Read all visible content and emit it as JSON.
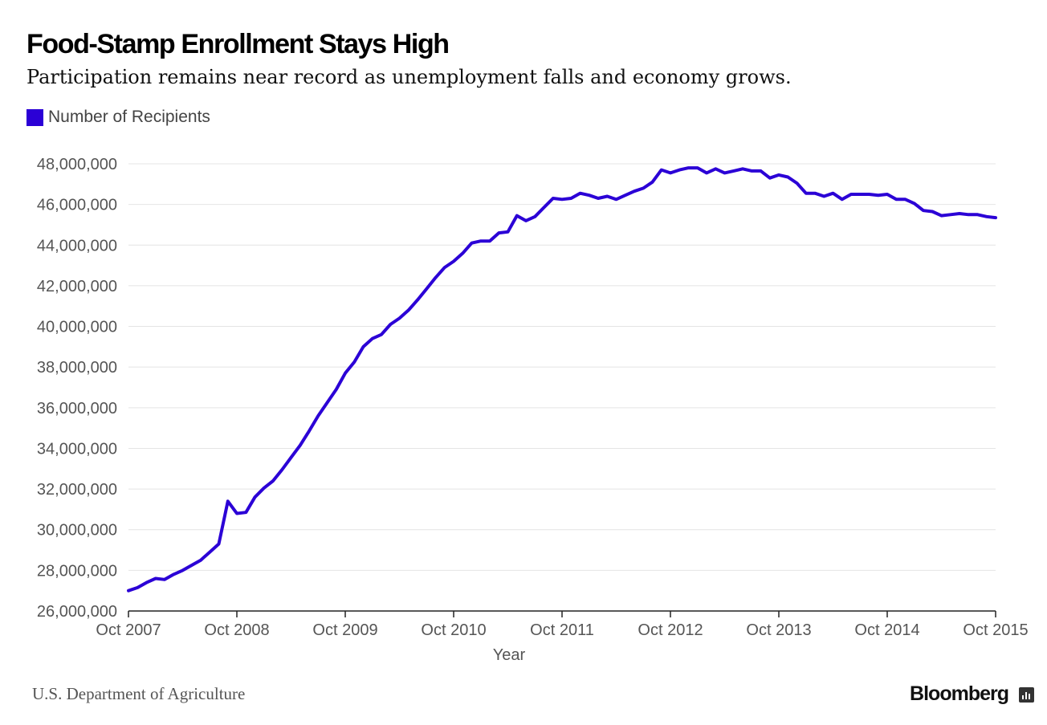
{
  "chart_data": {
    "type": "line",
    "title": "Food-Stamp Enrollment Stays High",
    "subtitle": "Participation remains near record as unemployment falls and economy grows.",
    "xlabel": "Year",
    "ylabel": "",
    "ylim": [
      26000000,
      48000000
    ],
    "yticks": [
      26000000,
      28000000,
      30000000,
      32000000,
      34000000,
      36000000,
      38000000,
      40000000,
      42000000,
      44000000,
      46000000,
      48000000
    ],
    "ytick_labels": [
      "26,000,000",
      "28,000,000",
      "30,000,000",
      "32,000,000",
      "34,000,000",
      "36,000,000",
      "38,000,000",
      "40,000,000",
      "42,000,000",
      "44,000,000",
      "46,000,000",
      "48,000,000"
    ],
    "xtick_labels": [
      "Oct 2007",
      "Oct 2008",
      "Oct 2009",
      "Oct 2010",
      "Oct 2011",
      "Oct 2012",
      "Oct 2013",
      "Oct 2014",
      "Oct 2015"
    ],
    "x_start": "Oct 2007",
    "x_unit": "months since Oct 2007",
    "x_range": [
      0,
      96
    ],
    "grid": true,
    "legend_position": "top-left",
    "series": [
      {
        "name": "Number of Recipients",
        "color": "#2B00D6",
        "values": [
          27000000,
          27150000,
          27400000,
          27600000,
          27550000,
          27800000,
          28000000,
          28250000,
          28500000,
          28900000,
          29300000,
          31400000,
          30800000,
          30850000,
          31600000,
          32050000,
          32400000,
          32950000,
          33550000,
          34150000,
          34850000,
          35600000,
          36250000,
          36900000,
          37700000,
          38250000,
          39000000,
          39400000,
          39600000,
          40100000,
          40400000,
          40800000,
          41300000,
          41850000,
          42400000,
          42900000,
          43200000,
          43600000,
          44100000,
          44200000,
          44200000,
          44600000,
          44650000,
          45450000,
          45200000,
          45400000,
          45850000,
          46300000,
          46250000,
          46300000,
          46550000,
          46450000,
          46300000,
          46400000,
          46250000,
          46450000,
          46650000,
          46800000,
          47100000,
          47700000,
          47550000,
          47700000,
          47800000,
          47800000,
          47550000,
          47750000,
          47550000,
          47650000,
          47750000,
          47650000,
          47650000,
          47300000,
          47450000,
          47350000,
          47050000,
          46550000,
          46550000,
          46400000,
          46550000,
          46250000,
          46500000,
          46500000,
          46500000,
          46450000,
          46500000,
          46250000,
          46250000,
          46050000,
          45700000,
          45650000,
          45450000,
          45500000,
          45550000,
          45500000,
          45500000,
          45400000,
          45350000
        ]
      }
    ]
  },
  "legend": {
    "label": "Number of Recipients"
  },
  "footer": {
    "source": "U.S. Department of Agriculture",
    "brand": "Bloomberg"
  }
}
